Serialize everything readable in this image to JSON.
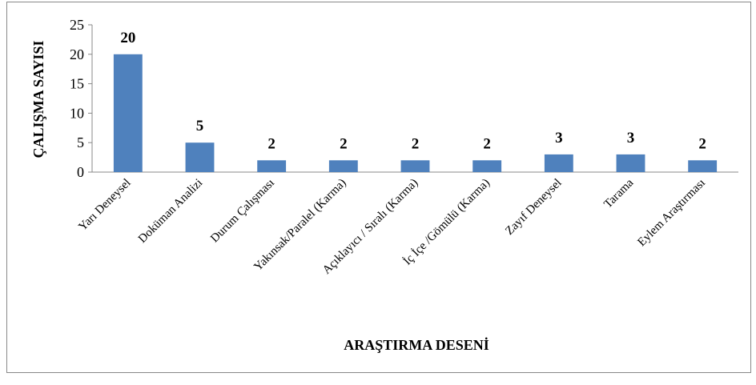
{
  "chart_data": {
    "type": "bar",
    "x_label": "ARAŞTIRMA DESENİ",
    "y_label": "ÇALIŞMA SAYISI",
    "categories": [
      "Yarı Deneysel",
      "Doküman Analizi",
      "Durum Çalışması",
      "Yakınsak/Paralel (Karma)",
      "Açıklayıcı / Sıralı (Karma)",
      "İç İçe /Gömülü (Karma)",
      "Zayıf Deneysel",
      "Tarama",
      "Eylem Araştırması"
    ],
    "values": [
      20,
      5,
      2,
      2,
      2,
      2,
      3,
      3,
      2
    ],
    "color": "#4f81bd",
    "ylim": [
      0,
      25
    ],
    "yticks": [
      0,
      5,
      10,
      15,
      20,
      25
    ],
    "grid": false
  }
}
